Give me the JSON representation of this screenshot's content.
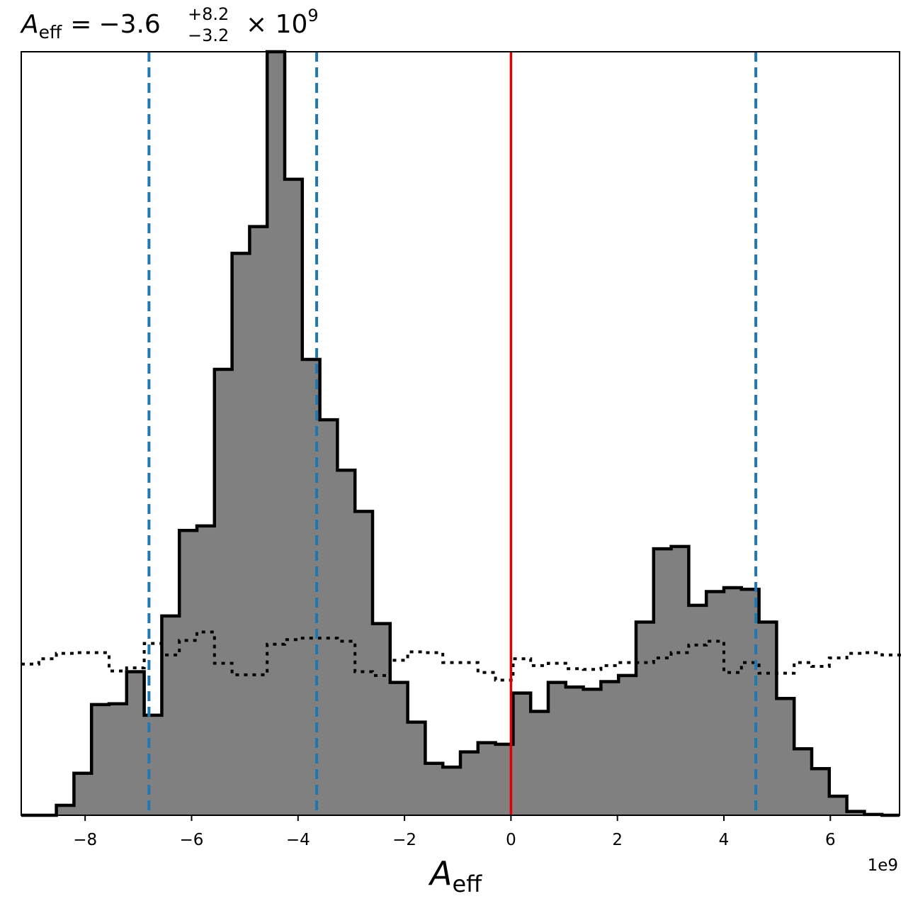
{
  "chart_data": {
    "type": "histogram",
    "title": {
      "symbol": "A",
      "symbol_subscript": "eff",
      "equals": "=",
      "median": "−3.6",
      "upper_error": "+8.2",
      "lower_error": "−3.2",
      "multiplier": "× 10",
      "exponent": "9"
    },
    "xlabel": {
      "symbol": "A",
      "subscript": "eff"
    },
    "x_offset_label": "1e9",
    "xlim": [
      -9.2,
      7.3
    ],
    "ylim": [
      0,
      1
    ],
    "x_ticks": [
      -8,
      -6,
      -4,
      -2,
      0,
      2,
      4,
      6
    ],
    "x_tick_labels": [
      "−8",
      "−6",
      "−4",
      "−2",
      "0",
      "2",
      "4",
      "6"
    ],
    "y_axis_ticks_shown": false,
    "grid": false,
    "bin_edges": [
      -9.2,
      -8.87,
      -8.54,
      -8.21,
      -7.88,
      -7.55,
      -7.22,
      -6.89,
      -6.56,
      -6.23,
      -5.9,
      -5.57,
      -5.24,
      -4.91,
      -4.58,
      -4.25,
      -3.92,
      -3.59,
      -3.26,
      -2.93,
      -2.6,
      -2.27,
      -1.94,
      -1.61,
      -1.28,
      -0.95,
      -0.62,
      -0.29,
      0.04,
      0.37,
      0.7,
      1.03,
      1.36,
      1.69,
      2.02,
      2.35,
      2.68,
      3.01,
      3.34,
      3.67,
      4.0,
      4.33,
      4.66,
      4.99,
      5.32,
      5.65,
      5.98,
      6.31,
      6.64,
      6.97,
      7.3
    ],
    "posterior_counts": [
      0,
      0,
      0.013,
      0.055,
      0.145,
      0.146,
      0.188,
      0.131,
      0.261,
      0.373,
      0.379,
      0.584,
      0.736,
      0.771,
      1.0,
      0.833,
      0.597,
      0.518,
      0.452,
      0.398,
      0.251,
      0.174,
      0.122,
      0.068,
      0.063,
      0.083,
      0.095,
      0.093,
      0.16,
      0.136,
      0.174,
      0.168,
      0.165,
      0.175,
      0.183,
      0.253,
      0.349,
      0.352,
      0.275,
      0.293,
      0.298,
      0.296,
      0.253,
      0.153,
      0.087,
      0.061,
      0.025,
      0.005,
      0.001,
      0,
      0
    ],
    "prior_counts": [
      0.198,
      0.205,
      0.212,
      0.213,
      0.213,
      0.189,
      0.193,
      0.225,
      0.21,
      0.229,
      0.24,
      0.199,
      0.184,
      0.184,
      0.224,
      0.23,
      0.232,
      0.232,
      0.228,
      0.188,
      0.183,
      0.203,
      0.214,
      0.213,
      0.2,
      0.2,
      0.187,
      0.177,
      0.205,
      0.196,
      0.199,
      0.192,
      0.191,
      0.196,
      0.2,
      0.2,
      0.206,
      0.213,
      0.223,
      0.228,
      0.187,
      0.2,
      0.186,
      0.186,
      0.2,
      0.195,
      0.206,
      0.212,
      0.213,
      0.21,
      0.213
    ],
    "quantile_lines": [
      -6.8,
      -3.65,
      4.6
    ],
    "truth_line": 0,
    "colors": {
      "histogram_fill": "#808080",
      "histogram_edge": "#000000",
      "quantile_line": "#1f77b4",
      "truth_line": "#e00000"
    }
  }
}
